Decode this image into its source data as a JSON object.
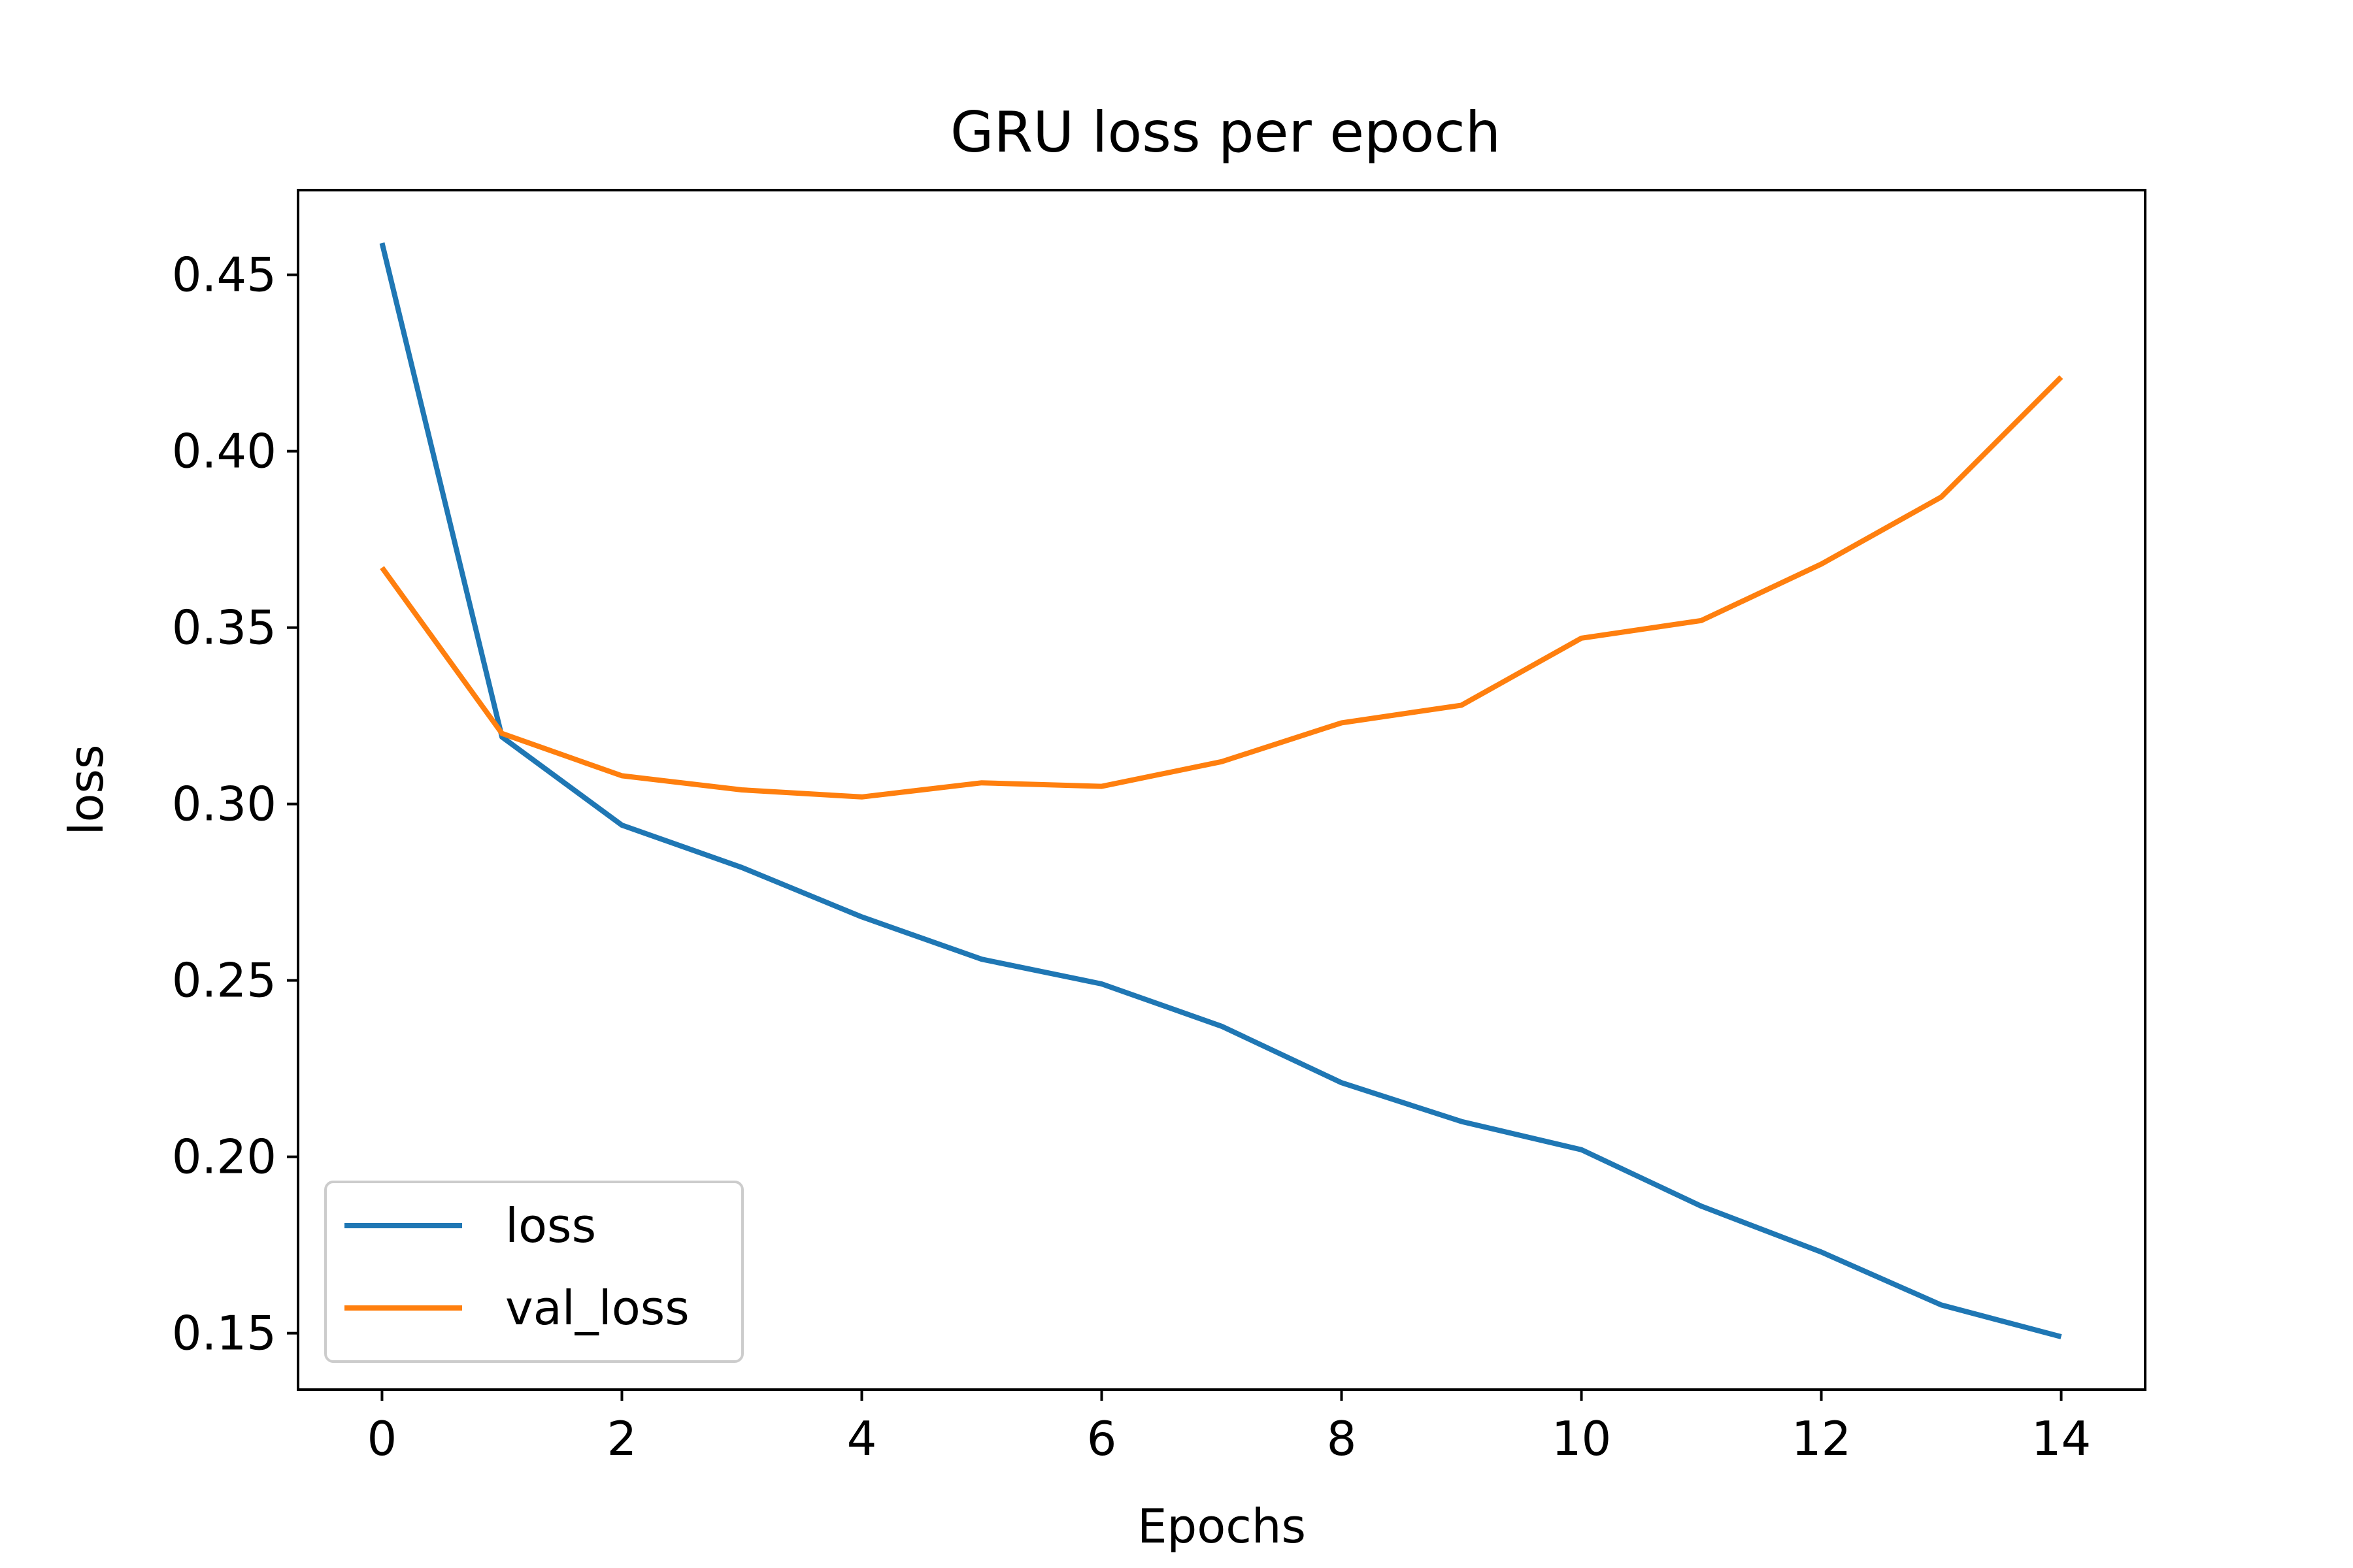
{
  "chart_data": {
    "type": "line",
    "title": "GRU loss per epoch",
    "xlabel": "Epochs",
    "ylabel": "loss",
    "xlim": [
      -0.7,
      14.7
    ],
    "ylim": [
      0.134,
      0.474
    ],
    "x_ticks": [
      0,
      2,
      4,
      6,
      8,
      10,
      12,
      14
    ],
    "x_tick_labels": [
      "0",
      "2",
      "4",
      "6",
      "8",
      "10",
      "12",
      "14"
    ],
    "y_ticks": [
      0.15,
      0.2,
      0.25,
      0.3,
      0.35,
      0.4,
      0.45
    ],
    "y_tick_labels": [
      "0.15",
      "0.20",
      "0.25",
      "0.30",
      "0.35",
      "0.40",
      "0.45"
    ],
    "grid": false,
    "legend_position": "lower-left",
    "x": [
      0,
      1,
      2,
      3,
      4,
      5,
      6,
      7,
      8,
      9,
      10,
      11,
      12,
      13,
      14
    ],
    "series": [
      {
        "name": "loss",
        "color": "#1f77b4",
        "values": [
          0.459,
          0.319,
          0.294,
          0.282,
          0.268,
          0.256,
          0.249,
          0.237,
          0.221,
          0.21,
          0.202,
          0.186,
          0.173,
          0.158,
          0.149
        ]
      },
      {
        "name": "val_loss",
        "color": "#ff7f0e",
        "values": [
          0.367,
          0.32,
          0.308,
          0.304,
          0.302,
          0.306,
          0.305,
          0.312,
          0.323,
          0.328,
          0.347,
          0.352,
          0.368,
          0.387,
          0.421
        ]
      }
    ]
  }
}
